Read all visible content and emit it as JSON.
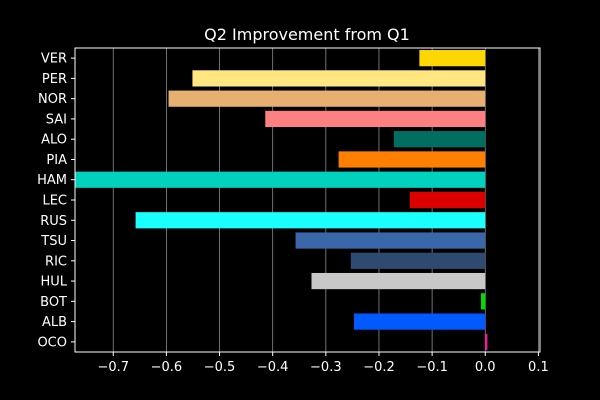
{
  "chart_data": {
    "type": "bar",
    "orientation": "horizontal",
    "title": "Q2 Improvement from Q1",
    "xlabel": "",
    "ylabel": "",
    "xlim": [
      -0.772,
      0.103
    ],
    "grid": "x",
    "background": "#000000",
    "text_color": "#ffffff",
    "x_ticks": [
      -0.7,
      -0.6,
      -0.5,
      -0.4,
      -0.3,
      -0.2,
      -0.1,
      0.0,
      0.1
    ],
    "x_tick_labels": [
      "−0.7",
      "−0.6",
      "−0.5",
      "−0.4",
      "−0.3",
      "−0.2",
      "−0.1",
      "0.0",
      "0.1"
    ],
    "categories": [
      "VER",
      "PER",
      "NOR",
      "SAI",
      "ALO",
      "PIA",
      "HAM",
      "LEC",
      "RUS",
      "TSU",
      "RIC",
      "HUL",
      "BOT",
      "ALB",
      "OCO"
    ],
    "values": [
      -0.124,
      -0.551,
      -0.596,
      -0.414,
      -0.172,
      -0.276,
      -0.78,
      -0.142,
      -0.658,
      -0.357,
      -0.253,
      -0.327,
      -0.008,
      -0.247,
      0.004
    ],
    "colors": [
      "#FFD700",
      "#FFE680",
      "#E8B070",
      "#FF8080",
      "#006F62",
      "#FF8000",
      "#00D2BE",
      "#DC0000",
      "#1AFFFF",
      "#3A66AA",
      "#2F4A70",
      "#C8C8C8",
      "#00DD00",
      "#005AFF",
      "#FF1493"
    ]
  }
}
